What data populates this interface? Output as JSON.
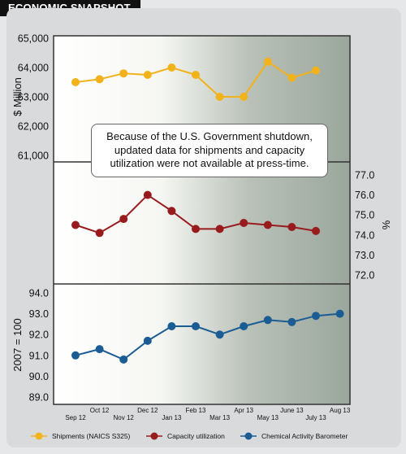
{
  "header": {
    "title": "ECONOMIC SNAPSHOT"
  },
  "note": "Because of the U.S. Government shutdown, updated data for shipments and capacity utilization were not available at press-time.",
  "colors": {
    "shipments": "#f2b21b",
    "capacity": "#981b1e",
    "barometer": "#1a5c93",
    "frame": "#333333"
  },
  "chart_data": {
    "type": "line",
    "categories": [
      "Sep 12",
      "Oct 12",
      "Nov 12",
      "Dec 12",
      "Jan 13",
      "Feb 13",
      "Mar 13",
      "Apr 13",
      "May 13",
      "June 13",
      "July 13",
      "Aug 13"
    ],
    "panels": [
      {
        "name": "shipments",
        "ylabel": "$ Million",
        "ylim": [
          61000,
          65000
        ],
        "ticks": [
          "65,000",
          "64,000",
          "63,000",
          "62,000",
          "61,000"
        ],
        "axis_side": "left"
      },
      {
        "name": "capacity",
        "ylabel": "%",
        "ylim": [
          72.0,
          77.0
        ],
        "ticks": [
          "77.0",
          "76.0",
          "75.0",
          "74.0",
          "73.0",
          "72.0"
        ],
        "axis_side": "right"
      },
      {
        "name": "barometer",
        "ylabel": "2007 = 100",
        "ylim": [
          89.0,
          94.0
        ],
        "ticks": [
          "94.0",
          "93.0",
          "92.0",
          "91.0",
          "90.0",
          "89.0"
        ],
        "axis_side": "left"
      }
    ],
    "series": [
      {
        "name": "Shipments (NAICS S325)",
        "values": [
          63500,
          63600,
          63800,
          63750,
          64000,
          63750,
          63000,
          63000,
          64200,
          63650,
          63900,
          null
        ]
      },
      {
        "name": "Capacity utilization",
        "values": [
          74.5,
          74.1,
          74.8,
          76.0,
          75.2,
          74.3,
          74.3,
          74.6,
          74.5,
          74.4,
          74.2,
          null
        ]
      },
      {
        "name": "Chemical Activity Barometer",
        "values": [
          91.0,
          91.3,
          90.8,
          91.7,
          92.4,
          92.4,
          92.0,
          92.4,
          92.7,
          92.6,
          92.9,
          93.0
        ]
      }
    ],
    "legend": "bottom"
  }
}
